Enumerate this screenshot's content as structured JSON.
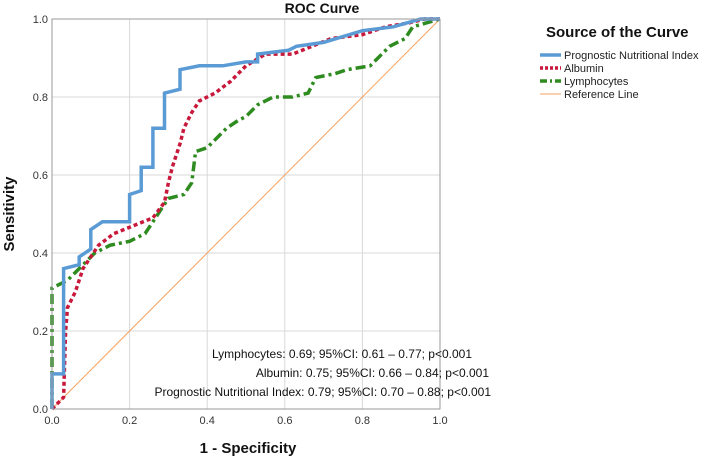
{
  "chart_data": {
    "type": "line",
    "title": "ROC Curve",
    "xlabel": "1 - Specificity",
    "ylabel": "Sensitivity",
    "xlim": [
      0,
      1
    ],
    "ylim": [
      0,
      1
    ],
    "xticks": [
      "0.0",
      "0.2",
      "0.4",
      "0.6",
      "0.8",
      "1.0"
    ],
    "yticks": [
      "0.0",
      "0.2",
      "0.4",
      "0.6",
      "0.8",
      "1.0"
    ],
    "grid": true,
    "legend": {
      "title": "Source of the Curve",
      "placement": "right-top"
    },
    "series": [
      {
        "name": "Prognostic Nutritional Index",
        "color": "#5b9bd5",
        "style": "solid",
        "x": [
          0.0,
          0.0,
          0.03,
          0.03,
          0.07,
          0.07,
          0.1,
          0.1,
          0.13,
          0.2,
          0.2,
          0.23,
          0.23,
          0.26,
          0.26,
          0.29,
          0.29,
          0.33,
          0.33,
          0.38,
          0.44,
          0.5,
          0.53,
          0.53,
          0.61,
          0.63,
          0.7,
          0.8,
          0.88,
          0.95,
          1.0
        ],
        "y": [
          0.0,
          0.09,
          0.09,
          0.36,
          0.37,
          0.39,
          0.41,
          0.46,
          0.48,
          0.48,
          0.55,
          0.56,
          0.62,
          0.62,
          0.72,
          0.72,
          0.81,
          0.82,
          0.87,
          0.88,
          0.88,
          0.89,
          0.89,
          0.91,
          0.92,
          0.93,
          0.94,
          0.97,
          0.98,
          1.0,
          1.0
        ]
      },
      {
        "name": "Albumin",
        "color": "#c8193c",
        "style": "dotted",
        "x": [
          0.0,
          0.03,
          0.035,
          0.04,
          0.06,
          0.08,
          0.12,
          0.16,
          0.21,
          0.26,
          0.29,
          0.3,
          0.31,
          0.33,
          0.34,
          0.36,
          0.38,
          0.42,
          0.46,
          0.5,
          0.55,
          0.62,
          0.67,
          0.72,
          0.8,
          0.86,
          0.92,
          0.96,
          1.0
        ],
        "y": [
          0.0,
          0.03,
          0.2,
          0.26,
          0.3,
          0.36,
          0.42,
          0.45,
          0.47,
          0.49,
          0.53,
          0.58,
          0.62,
          0.68,
          0.72,
          0.76,
          0.79,
          0.81,
          0.84,
          0.88,
          0.91,
          0.91,
          0.93,
          0.95,
          0.96,
          0.98,
          0.99,
          1.0,
          1.0
        ]
      },
      {
        "name": "Lymphocytes",
        "color": "#2e8b1f",
        "style": "dashdot",
        "x": [
          0.0,
          0.0,
          0.04,
          0.07,
          0.11,
          0.15,
          0.2,
          0.24,
          0.26,
          0.28,
          0.3,
          0.34,
          0.36,
          0.37,
          0.4,
          0.43,
          0.45,
          0.48,
          0.5,
          0.53,
          0.57,
          0.62,
          0.66,
          0.68,
          0.73,
          0.76,
          0.82,
          0.87,
          0.91,
          0.93,
          1.0
        ],
        "y": [
          0.0,
          0.31,
          0.33,
          0.36,
          0.4,
          0.42,
          0.43,
          0.45,
          0.48,
          0.51,
          0.54,
          0.55,
          0.58,
          0.66,
          0.67,
          0.7,
          0.72,
          0.74,
          0.75,
          0.78,
          0.8,
          0.8,
          0.81,
          0.85,
          0.86,
          0.87,
          0.88,
          0.93,
          0.95,
          0.98,
          1.0
        ]
      },
      {
        "name": "Reference Line",
        "color": "#f4a261",
        "style": "thin",
        "x": [
          0,
          1
        ],
        "y": [
          0,
          1
        ]
      }
    ],
    "annotations": [
      "Lymphocytes: 0.69; 95%CI: 0.61 – 0.77; p<0.001",
      "Albumin: 0.75; 95%CI: 0.66 – 0.84; p<0.001",
      "Prognostic Nutritional Index: 0.79; 95%CI: 0.70 – 0.88; p<0.001"
    ]
  }
}
